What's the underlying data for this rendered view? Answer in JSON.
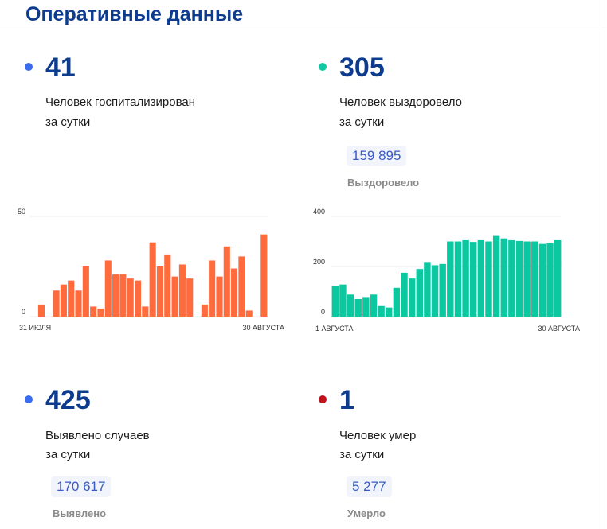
{
  "title": "Оперативные данные",
  "colors": {
    "title": "#0d3b8e",
    "hospital_dot": "#3b6cf0",
    "recovered_dot": "#10c9a3",
    "cases_dot": "#3b6cf0",
    "deaths_dot": "#c0141b",
    "hospital_bar": "#ff6b3d",
    "recovered_bar": "#0cc8a0"
  },
  "stats": {
    "hospitalized": {
      "value": "41",
      "label_line1": "Человек госпитализирован",
      "label_line2": "за сутки"
    },
    "recovered": {
      "value": "305",
      "label_line1": "Человек выздоровело",
      "label_line2": "за сутки",
      "total": "159 895",
      "total_label": "Выздоровело"
    },
    "cases": {
      "value": "425",
      "label_line1": "Выявлено случаев",
      "label_line2": "за сутки",
      "total": "170 617",
      "total_label": "Выявлено"
    },
    "deaths": {
      "value": "1",
      "label_line1": "Человек умер",
      "label_line2": "за сутки",
      "total": "5 277",
      "total_label": "Умерло"
    }
  },
  "chart_data": [
    {
      "type": "bar",
      "name": "hospitalized",
      "yticks": [
        "0",
        "50"
      ],
      "ylim": [
        0,
        50
      ],
      "x_start_label": "31 ИЮЛЯ",
      "x_end_label": "30 АВГУСТА",
      "values": [
        0,
        6,
        0,
        13,
        16,
        18,
        13,
        25,
        5,
        4,
        28,
        21,
        21,
        19,
        18,
        5,
        37,
        25,
        31,
        20,
        26,
        19,
        0,
        6,
        28,
        20,
        35,
        24,
        30,
        3,
        0,
        41
      ],
      "grid": true
    },
    {
      "type": "bar",
      "name": "recovered",
      "yticks": [
        "0",
        "200",
        "400"
      ],
      "ylim": [
        0,
        400
      ],
      "x_start_label": "1 АВГУСТА",
      "x_end_label": "30 АВГУСТА",
      "values": [
        122,
        128,
        88,
        70,
        78,
        88,
        42,
        36,
        115,
        175,
        152,
        190,
        218,
        205,
        210,
        300,
        300,
        305,
        298,
        305,
        300,
        322,
        312,
        305,
        302,
        300,
        300,
        290,
        292,
        305
      ],
      "grid": true
    }
  ]
}
